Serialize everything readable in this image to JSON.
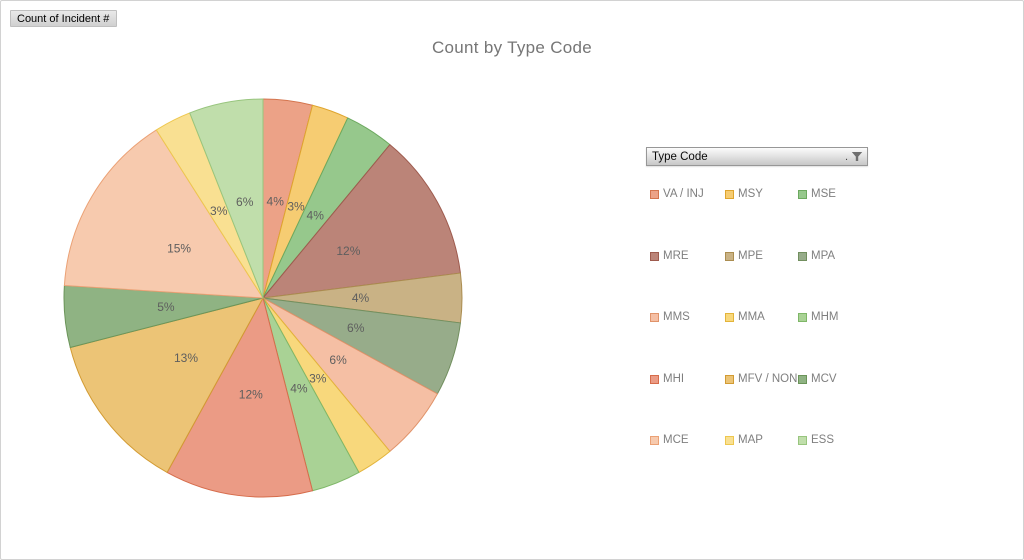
{
  "field_button": {
    "label": "Count of Incident #"
  },
  "chart": {
    "title": "Count by Type Code"
  },
  "filter_button": {
    "label": "Type Code",
    "sort_indicator": ".",
    "icon": "funnel-icon"
  },
  "chart_data": {
    "type": "pie",
    "title": "Count by Type Code",
    "value_label_format": "percent",
    "start_angle_deg": 0,
    "direction": "clockwise",
    "legend_position": "right",
    "legend_columns": 3,
    "categories": [
      "VA / INJ",
      "MSY",
      "MSE",
      "MRE",
      "MPE",
      "MPA",
      "MMS",
      "MMA",
      "MHM",
      "MHI",
      "MFV / NON",
      "MCV",
      "MCE",
      "MAP",
      "ESS"
    ],
    "values_percent": [
      4,
      3,
      4,
      12,
      4,
      6,
      6,
      3,
      4,
      12,
      13,
      5,
      15,
      3,
      6
    ],
    "colors": [
      "#ECA287",
      "#F6CC72",
      "#96C88C",
      "#BB8478",
      "#C9B285",
      "#97AC8A",
      "#F5BFA4",
      "#F8D87C",
      "#A9D295",
      "#EB9B85",
      "#ECC476",
      "#8FB383",
      "#F7CAAE",
      "#F9E092",
      "#C0DEAB"
    ],
    "border_colors": [
      "#D4754E",
      "#DFA52E",
      "#6CA95F",
      "#9E5B4E",
      "#AB8D50",
      "#728F5F",
      "#E0936A",
      "#E3B43B",
      "#7FB768",
      "#D66C4B",
      "#D29B33",
      "#6B9459",
      "#EBA175",
      "#EEC74E",
      "#98C57E"
    ],
    "value_label_color": "#5E5E5E",
    "title_color": "#767676",
    "legend_text_color": "#7F7F7F"
  }
}
